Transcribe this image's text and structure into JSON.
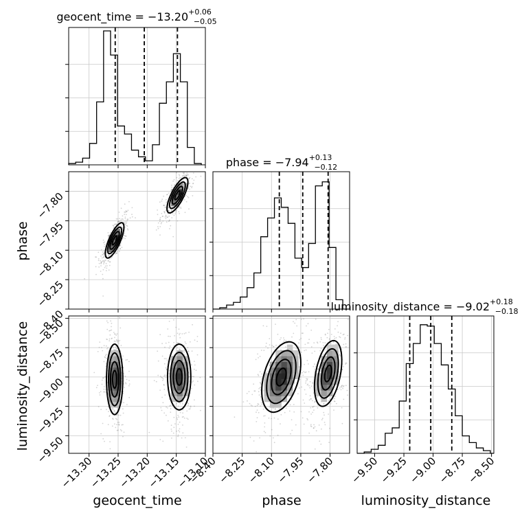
{
  "chart_data": {
    "type": "corner",
    "parameters": [
      {
        "name": "geocent_time",
        "axis_label": "geocent_time",
        "title": {
          "prefix": "geocent_time = ",
          "median": "−13.20",
          "plus": "+0.06",
          "minus": "−0.05"
        },
        "range": [
          -13.335,
          -13.1
        ],
        "ticks": [
          -13.3,
          -13.25,
          -13.2,
          -13.15,
          -13.1
        ],
        "tick_labels": [
          "−13.30",
          "−13.25",
          "−13.20",
          "−13.15",
          "−13.10"
        ],
        "quantiles": [
          -13.255,
          -13.205,
          -13.148
        ],
        "hist": {
          "edges": [
            -13.335,
            -13.323,
            -13.311,
            -13.299,
            -13.287,
            -13.275,
            -13.263,
            -13.251,
            -13.239,
            -13.227,
            -13.215,
            -13.203,
            -13.191,
            -13.179,
            -13.167,
            -13.155,
            -13.143,
            -13.131,
            -13.119,
            -13.107
          ],
          "heights": [
            0.01,
            0.02,
            0.05,
            0.16,
            0.47,
            1.0,
            0.82,
            0.29,
            0.23,
            0.11,
            0.06,
            0.03,
            0.15,
            0.46,
            0.62,
            0.83,
            0.62,
            0.13,
            0.01
          ]
        }
      },
      {
        "name": "phase",
        "axis_label": "phase",
        "title": {
          "prefix": "phase = ",
          "median": "−7.94",
          "plus": "+0.13",
          "minus": "−0.12"
        },
        "range": [
          -8.4,
          -7.7
        ],
        "ticks": [
          -8.4,
          -8.25,
          -8.1,
          -7.95,
          -7.8
        ],
        "tick_labels": [
          "−8.40",
          "−8.25",
          "−8.10",
          "−7.95",
          "−7.80"
        ],
        "quantiles": [
          -8.06,
          -7.94,
          -7.81
        ],
        "hist": {
          "edges": [
            -8.4,
            -8.365,
            -8.33,
            -8.295,
            -8.26,
            -8.225,
            -8.19,
            -8.155,
            -8.12,
            -8.085,
            -8.05,
            -8.015,
            -7.98,
            -7.945,
            -7.91,
            -7.875,
            -7.84,
            -7.805,
            -7.77,
            -7.735,
            -7.7
          ],
          "heights": [
            0.0,
            0.01,
            0.03,
            0.05,
            0.09,
            0.16,
            0.27,
            0.54,
            0.68,
            0.83,
            0.76,
            0.64,
            0.38,
            0.31,
            0.49,
            0.92,
            0.95,
            0.46,
            0.07,
            0.0
          ]
        }
      },
      {
        "name": "luminosity_distance",
        "axis_label": "luminosity_distance",
        "title": {
          "prefix": "luminosity_distance = ",
          "median": "−9.02",
          "plus": "+0.18",
          "minus": "−0.18"
        },
        "range": [
          -9.65,
          -8.48
        ],
        "ticks": [
          -9.5,
          -9.25,
          -9.0,
          -8.75,
          -8.5
        ],
        "tick_labels": [
          "−9.50",
          "−9.25",
          "−9.00",
          "−8.75",
          "−8.50"
        ],
        "quantiles": [
          -9.2,
          -9.02,
          -8.84
        ],
        "hist": {
          "edges": [
            -9.65,
            -9.59,
            -9.53,
            -9.47,
            -9.41,
            -9.35,
            -9.29,
            -9.23,
            -9.17,
            -9.11,
            -9.05,
            -8.99,
            -8.93,
            -8.87,
            -8.81,
            -8.75,
            -8.69,
            -8.63,
            -8.57,
            -8.51,
            -8.48
          ],
          "heights": [
            0.0,
            0.01,
            0.03,
            0.06,
            0.15,
            0.19,
            0.39,
            0.67,
            0.82,
            0.96,
            0.95,
            0.82,
            0.66,
            0.48,
            0.28,
            0.13,
            0.08,
            0.04,
            0.02,
            0.0
          ]
        }
      }
    ],
    "scatter_color": "#7f7f7f",
    "density_color": "#000000",
    "grid": true,
    "modes": {
      "time_phase": [
        {
          "x": -13.256,
          "y": -8.05,
          "sx": 0.008,
          "sy": 0.045,
          "rho": 0.75,
          "w": 0.52
        },
        {
          "x": -13.148,
          "y": -7.82,
          "sx": 0.009,
          "sy": 0.045,
          "rho": 0.75,
          "w": 0.48
        }
      ],
      "time_dist": [
        {
          "x": -13.256,
          "y": -9.02,
          "sx": 0.007,
          "sy": 0.15,
          "rho": 0.0,
          "w": 0.52
        },
        {
          "x": -13.145,
          "y": -9.0,
          "sx": 0.01,
          "sy": 0.14,
          "rho": 0.0,
          "w": 0.48
        }
      ],
      "phase_dist": [
        {
          "x": -8.05,
          "y": -9.0,
          "sx": 0.05,
          "sy": 0.15,
          "rho": 0.4,
          "w": 0.52
        },
        {
          "x": -7.81,
          "y": -8.97,
          "sx": 0.035,
          "sy": 0.14,
          "rho": 0.4,
          "w": 0.48
        }
      ]
    }
  }
}
